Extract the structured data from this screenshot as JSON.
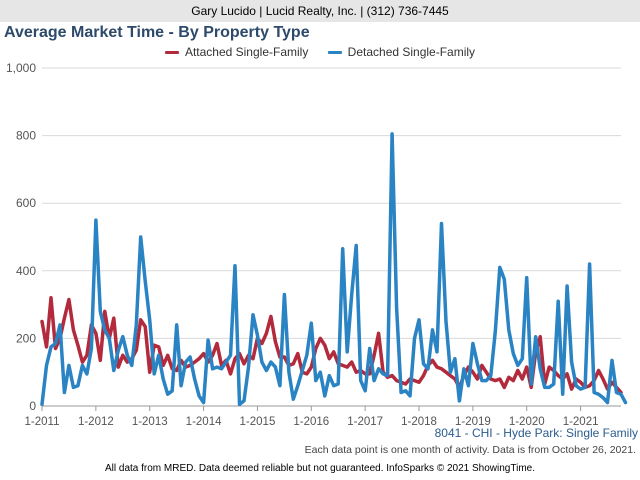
{
  "header": {
    "agent_line": "Gary Lucido | Lucid Realty, Inc. | (312) 736-7445"
  },
  "chart_data": {
    "type": "line",
    "title": "Average Market Time - By Property Type",
    "subtitle": "8041 - CHI - Hyde Park: Single Family",
    "note": "Each data point is one month of activity. Data is from October 26, 2021.",
    "footer": "All data from MRED. Data deemed reliable but not guaranteed. InfoSparks © 2021 ShowingTime.",
    "ylim": [
      0,
      1000
    ],
    "ytick_labels": [
      "0",
      "200",
      "400",
      "600",
      "800",
      "1,000"
    ],
    "yticks": [
      0,
      200,
      400,
      600,
      800,
      1000
    ],
    "xlim": [
      0,
      129
    ],
    "x_labels": [
      "1-2011",
      "1-2012",
      "1-2013",
      "1-2014",
      "1-2015",
      "1-2016",
      "1-2017",
      "1-2018",
      "1-2019",
      "1-2020",
      "1-2021"
    ],
    "x_label_months": [
      0,
      12,
      24,
      36,
      48,
      60,
      72,
      84,
      96,
      108,
      120
    ],
    "grid": true,
    "legend_position": "top",
    "series": [
      {
        "name": "Attached Single-Family",
        "color": "#b22a3c",
        "values": [
          250,
          175,
          320,
          170,
          200,
          260,
          315,
          225,
          180,
          130,
          150,
          240,
          215,
          135,
          280,
          200,
          260,
          115,
          150,
          130,
          140,
          165,
          255,
          235,
          100,
          180,
          175,
          120,
          150,
          110,
          105,
          135,
          115,
          120,
          130,
          140,
          155,
          130,
          150,
          185,
          120,
          135,
          95,
          140,
          155,
          125,
          150,
          140,
          200,
          185,
          215,
          265,
          190,
          145,
          145,
          120,
          125,
          155,
          100,
          95,
          115,
          170,
          200,
          180,
          140,
          160,
          125,
          120,
          115,
          130,
          100,
          105,
          95,
          95,
          150,
          215,
          100,
          85,
          90,
          75,
          70,
          65,
          80,
          75,
          70,
          90,
          120,
          135,
          115,
          110,
          100,
          90,
          80,
          55,
          90,
          115,
          100,
          80,
          120,
          100,
          80,
          75,
          80,
          55,
          85,
          75,
          105,
          80,
          115,
          55,
          160,
          205,
          65,
          115,
          105,
          90,
          80,
          95,
          50,
          80,
          70,
          55,
          60,
          75,
          105,
          80,
          50,
          70,
          55,
          40
        ],
        "stroke_width": 3.5
      },
      {
        "name": "Detached Single-Family",
        "color": "#2a83c3",
        "values": [
          5,
          120,
          175,
          185,
          240,
          40,
          120,
          55,
          60,
          120,
          95,
          170,
          550,
          280,
          225,
          200,
          105,
          165,
          205,
          150,
          120,
          240,
          500,
          370,
          255,
          95,
          150,
          80,
          35,
          45,
          240,
          60,
          130,
          145,
          80,
          30,
          10,
          195,
          110,
          115,
          110,
          130,
          150,
          415,
          5,
          15,
          115,
          270,
          210,
          130,
          105,
          130,
          115,
          60,
          330,
          100,
          20,
          60,
          105,
          150,
          245,
          75,
          100,
          30,
          90,
          60,
          65,
          465,
          160,
          330,
          475,
          75,
          45,
          170,
          75,
          110,
          95,
          90,
          805,
          290,
          40,
          45,
          30,
          200,
          255,
          125,
          110,
          225,
          160,
          540,
          250,
          100,
          140,
          15,
          110,
          60,
          185,
          125,
          75,
          75,
          90,
          220,
          410,
          375,
          225,
          155,
          120,
          140,
          380,
          65,
          205,
          110,
          55,
          55,
          65,
          310,
          35,
          355,
          130,
          60,
          50,
          55,
          420,
          40,
          35,
          25,
          10,
          135,
          40,
          35,
          10
        ]
      }
    ]
  }
}
